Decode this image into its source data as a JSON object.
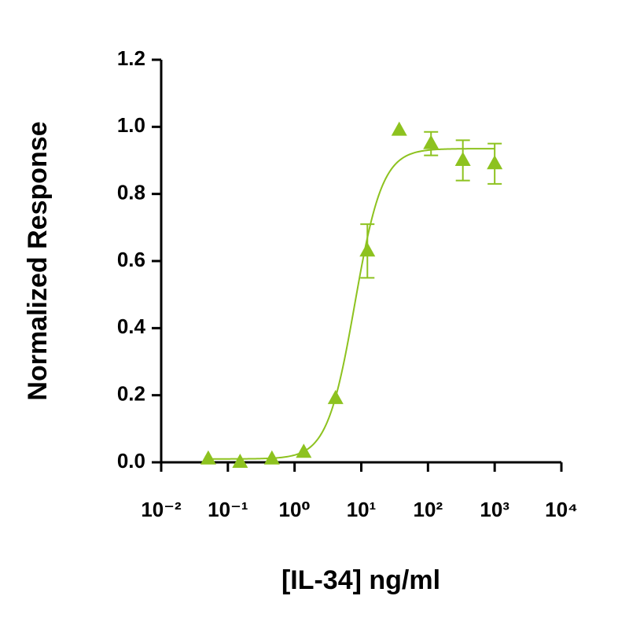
{
  "chart_data": {
    "type": "scatter",
    "x_label": "[IL-34] ng/ml",
    "y_label": "Normalized Response",
    "x_log": true,
    "xlim": [
      0.01,
      10000
    ],
    "xticks": [
      {
        "value": 0.01,
        "label": "10⁻²"
      },
      {
        "value": 0.1,
        "label": "10⁻¹"
      },
      {
        "value": 1,
        "label": "10⁰"
      },
      {
        "value": 10,
        "label": "10¹"
      },
      {
        "value": 100,
        "label": "10²"
      },
      {
        "value": 1000,
        "label": "10³"
      },
      {
        "value": 10000,
        "label": "10⁴"
      }
    ],
    "ylim": [
      0,
      1.2
    ],
    "yticks": [
      {
        "value": 0,
        "label": "0.0"
      },
      0.2,
      0.4,
      0.6,
      0.8,
      {
        "value": 1,
        "label": "1.0"
      },
      1.2
    ],
    "color": "#8dc21f",
    "x": [
      0.0508,
      0.1524,
      0.4572,
      1.372,
      4.115,
      12.35,
      37.04,
      111.1,
      333.3,
      1000
    ],
    "values": [
      0.01,
      0.0,
      0.01,
      0.03,
      0.19,
      0.63,
      0.99,
      0.95,
      0.9,
      0.89
    ],
    "errors": [
      null,
      null,
      null,
      null,
      null,
      0.08,
      null,
      0.035,
      0.06,
      0.06
    ],
    "fit": {
      "bottom": 0.01,
      "top": 0.935,
      "ec50": 8,
      "hill": 2.1
    }
  }
}
